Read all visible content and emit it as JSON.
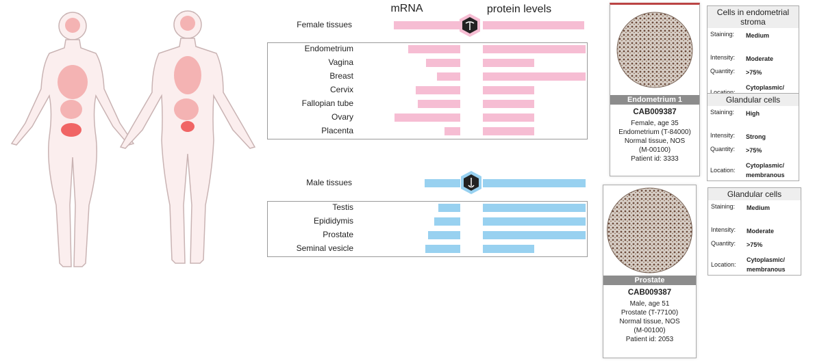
{
  "column_headers": {
    "mrna": "mRNA",
    "protein": "protein levels"
  },
  "groups": [
    {
      "label": "Female tissues",
      "color": "#f6bdd3",
      "mrna": 97,
      "protein": 148,
      "tissues": [
        {
          "name": "Endometrium",
          "mrna": 76,
          "protein": 150
        },
        {
          "name": "Vagina",
          "mrna": 50,
          "protein": 75
        },
        {
          "name": "Breast",
          "mrna": 34,
          "protein": 150
        },
        {
          "name": "Cervix",
          "mrna": 65,
          "protein": 75
        },
        {
          "name": "Fallopian tube",
          "mrna": 62,
          "protein": 75
        },
        {
          "name": "Ovary",
          "mrna": 96,
          "protein": 75
        },
        {
          "name": "Placenta",
          "mrna": 23,
          "protein": 75
        }
      ]
    },
    {
      "label": "Male tissues",
      "color": "#98d1f0",
      "mrna": 52,
      "protein": 150,
      "tissues": [
        {
          "name": "Testis",
          "mrna": 32,
          "protein": 150
        },
        {
          "name": "Epididymis",
          "mrna": 38,
          "protein": 150
        },
        {
          "name": "Prostate",
          "mrna": 47,
          "protein": 150
        },
        {
          "name": "Seminal vesicle",
          "mrna": 51,
          "protein": 75
        }
      ]
    }
  ],
  "samples": [
    {
      "title": "Endometrium 1",
      "antibody": "CAB009387",
      "details": [
        "Female, age 35",
        "Endometrium (T-84000)",
        "Normal tissue, NOS",
        "(M-00100)",
        "Patient id: 3333"
      ],
      "annotations": [
        {
          "cell_type": "Cells in endometrial stroma",
          "fields": [
            {
              "label": "Staining:",
              "value": "Medium"
            },
            {
              "label": "Intensity:",
              "value": "Moderate"
            },
            {
              "label": "Quantity:",
              "value": ">75%"
            },
            {
              "label": "Location:",
              "value": "Cytoplasmic/ membranous"
            }
          ]
        },
        {
          "cell_type": "Glandular cells",
          "fields": [
            {
              "label": "Staining:",
              "value": "High"
            },
            {
              "label": "Intensity:",
              "value": "Strong"
            },
            {
              "label": "Quantity:",
              "value": ">75%"
            },
            {
              "label": "Location:",
              "value": "Cytoplasmic/ membranous"
            }
          ]
        }
      ]
    },
    {
      "title": "Prostate",
      "antibody": "CAB009387",
      "details": [
        "Male, age 51",
        "Prostate (T-77100)",
        "Normal tissue, NOS",
        "(M-00100)",
        "Patient id: 2053"
      ],
      "annotations": [
        {
          "cell_type": "Glandular cells",
          "fields": [
            {
              "label": "Staining:",
              "value": "Medium"
            },
            {
              "label": "Intensity:",
              "value": "Moderate"
            },
            {
              "label": "Quantity:",
              "value": ">75%"
            },
            {
              "label": "Location:",
              "value": "Cytoplasmic/ membranous"
            }
          ]
        }
      ]
    }
  ]
}
